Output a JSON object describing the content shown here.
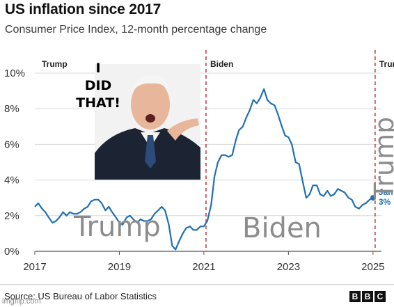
{
  "title": "US inflation since 2017",
  "subtitle": "Consumer Price Index, 12-month percentage change",
  "source": "Source: US Bureau of Labor Statistics",
  "logo_letters": [
    "B",
    "B",
    "C"
  ],
  "watermark": "imgflip.com",
  "meme": {
    "caption_lines": [
      "I",
      "DID",
      "THAT!"
    ],
    "overlay_trump_left": "Trump",
    "overlay_biden": "Biden",
    "overlay_trump_right": "Trump"
  },
  "colors": {
    "line": "#1f6fb2",
    "divider": "#c0303a",
    "grid": "#d9d9d9",
    "text": "#333333"
  },
  "chart_data": {
    "type": "line",
    "title": "US inflation since 2017",
    "subtitle": "Consumer Price Index, 12-month percentage change",
    "xlabel": "",
    "ylabel": "",
    "xlim": [
      2017,
      2025.2
    ],
    "ylim": [
      0,
      10
    ],
    "y_ticks": [
      0,
      2,
      4,
      6,
      8,
      10
    ],
    "y_tick_labels": [
      "0%",
      "2%",
      "4%",
      "6%",
      "8%",
      "10%"
    ],
    "x_ticks": [
      2017,
      2019,
      2021,
      2023,
      2025
    ],
    "x_tick_labels": [
      "2017",
      "2019",
      "2021",
      "2023",
      "2025"
    ],
    "grid": true,
    "period_markers": [
      {
        "x": 2017,
        "label": "Trump"
      },
      {
        "x": 2021.05,
        "label": "Biden"
      },
      {
        "x": 2025.05,
        "label": "Trump"
      }
    ],
    "end_label": {
      "line1": "Jan",
      "line2": "3%"
    },
    "series": [
      {
        "x": [
          2017.0,
          2017.08,
          2017.17,
          2017.25,
          2017.33,
          2017.42,
          2017.5,
          2017.58,
          2017.67,
          2017.75,
          2017.83,
          2017.92,
          2018.0,
          2018.08,
          2018.17,
          2018.25,
          2018.33,
          2018.42,
          2018.5,
          2018.58,
          2018.67,
          2018.75,
          2018.83,
          2018.92,
          2019.0,
          2019.08,
          2019.17,
          2019.25,
          2019.33,
          2019.42,
          2019.5,
          2019.58,
          2019.67,
          2019.75,
          2019.83,
          2019.92,
          2020.0,
          2020.08,
          2020.17,
          2020.25,
          2020.33,
          2020.42,
          2020.5,
          2020.58,
          2020.67,
          2020.75,
          2020.83,
          2020.92,
          2021.0,
          2021.08,
          2021.17,
          2021.25,
          2021.33,
          2021.42,
          2021.5,
          2021.58,
          2021.67,
          2021.75,
          2021.83,
          2021.92,
          2022.0,
          2022.08,
          2022.17,
          2022.25,
          2022.33,
          2022.42,
          2022.5,
          2022.58,
          2022.67,
          2022.75,
          2022.83,
          2022.92,
          2023.0,
          2023.08,
          2023.17,
          2023.25,
          2023.33,
          2023.42,
          2023.5,
          2023.58,
          2023.67,
          2023.75,
          2023.83,
          2023.92,
          2024.0,
          2024.08,
          2024.17,
          2024.25,
          2024.33,
          2024.42,
          2024.5,
          2024.58,
          2024.67,
          2024.75,
          2024.83,
          2024.92,
          2025.0
        ],
        "values": [
          2.5,
          2.7,
          2.4,
          2.2,
          1.9,
          1.6,
          1.7,
          1.9,
          2.2,
          2.0,
          2.2,
          2.1,
          2.1,
          2.2,
          2.4,
          2.5,
          2.8,
          2.9,
          2.9,
          2.7,
          2.3,
          2.5,
          2.2,
          1.9,
          1.6,
          1.5,
          1.9,
          2.0,
          1.8,
          1.6,
          1.8,
          1.7,
          1.7,
          1.8,
          2.1,
          2.3,
          2.5,
          2.3,
          1.5,
          0.3,
          0.1,
          0.6,
          1.0,
          1.3,
          1.4,
          1.2,
          1.2,
          1.4,
          1.4,
          1.7,
          2.6,
          4.2,
          5.0,
          5.4,
          5.4,
          5.3,
          5.4,
          6.2,
          6.8,
          7.0,
          7.5,
          7.9,
          8.5,
          8.3,
          8.6,
          9.1,
          8.5,
          8.3,
          8.2,
          7.7,
          7.1,
          6.5,
          6.4,
          6.0,
          5.0,
          4.9,
          4.0,
          3.0,
          3.2,
          3.7,
          3.7,
          3.2,
          3.1,
          3.4,
          3.1,
          3.2,
          3.5,
          3.4,
          3.3,
          3.0,
          2.9,
          2.5,
          2.4,
          2.6,
          2.7,
          2.9,
          3.0
        ]
      }
    ]
  }
}
